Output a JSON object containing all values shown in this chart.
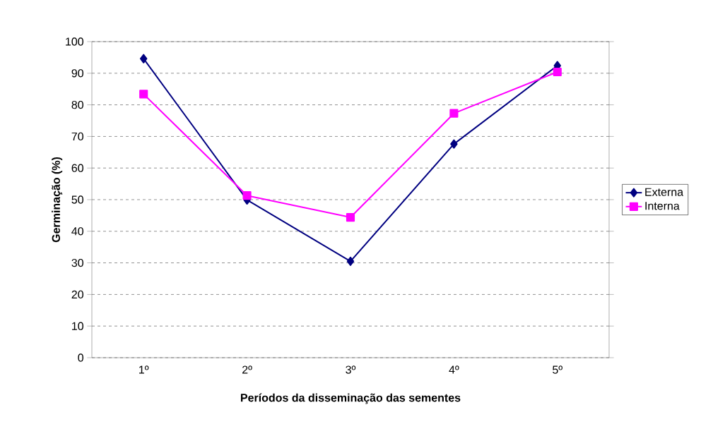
{
  "chart_data": {
    "type": "line",
    "xlabel": "Períodos da disseminação das sementes",
    "ylabel": "Germinação  (%)",
    "categories": [
      "1º",
      "2º",
      "3º",
      "4º",
      "5º"
    ],
    "series": [
      {
        "name": "Externa",
        "color": "#000080",
        "marker": "diamond",
        "values": [
          94.6,
          49.9,
          30.5,
          67.6,
          92.4
        ]
      },
      {
        "name": "Interna",
        "color": "#ff00ff",
        "marker": "square",
        "values": [
          83.4,
          51.3,
          44.4,
          77.3,
          90.4
        ]
      }
    ],
    "ylim": [
      0,
      100
    ],
    "yticks": [
      0,
      10,
      20,
      30,
      40,
      50,
      60,
      70,
      80,
      90,
      100
    ],
    "grid": "y",
    "legend": "right",
    "line_style": "solid"
  }
}
